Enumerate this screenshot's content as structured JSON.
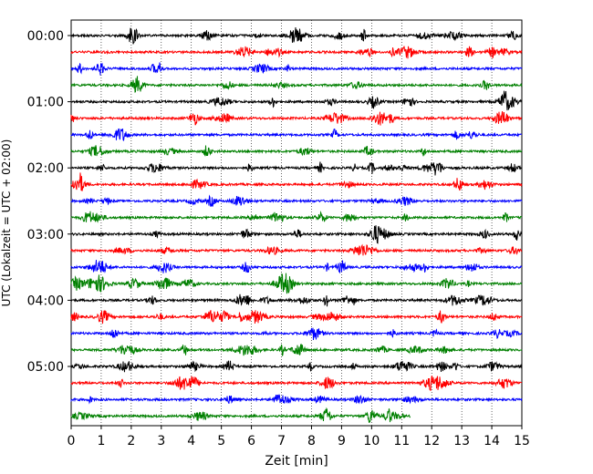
{
  "chart_data": {
    "type": "line",
    "title": "",
    "xlabel": "Zeit  [min]",
    "ylabel": "UTC (Lokalzeit = UTC + 02:00)",
    "xlim": [
      0,
      15
    ],
    "x_ticks": [
      0,
      1,
      2,
      3,
      4,
      5,
      6,
      7,
      8,
      9,
      10,
      11,
      12,
      13,
      14,
      15
    ],
    "x_grid": "dotted vertical lines at each minute",
    "y_tick_labels": [
      "00:00",
      "01:00",
      "02:00",
      "03:00",
      "04:00",
      "05:00"
    ],
    "row_interval_minutes": 15,
    "row_colors": [
      "#000000",
      "#ff0000",
      "#0000ff",
      "#008000"
    ],
    "traces": [
      {
        "start": "00:00",
        "end_min": 15,
        "color": "#000000"
      },
      {
        "start": "00:15",
        "end_min": 15,
        "color": "#ff0000"
      },
      {
        "start": "00:30",
        "end_min": 15,
        "color": "#0000ff"
      },
      {
        "start": "00:45",
        "end_min": 15,
        "color": "#008000"
      },
      {
        "start": "01:00",
        "end_min": 15,
        "color": "#000000"
      },
      {
        "start": "01:15",
        "end_min": 15,
        "color": "#ff0000"
      },
      {
        "start": "01:30",
        "end_min": 15,
        "color": "#0000ff"
      },
      {
        "start": "01:45",
        "end_min": 15,
        "color": "#008000"
      },
      {
        "start": "02:00",
        "end_min": 15,
        "color": "#000000"
      },
      {
        "start": "02:15",
        "end_min": 15,
        "color": "#ff0000"
      },
      {
        "start": "02:30",
        "end_min": 15,
        "color": "#0000ff"
      },
      {
        "start": "02:45",
        "end_min": 15,
        "color": "#008000"
      },
      {
        "start": "03:00",
        "end_min": 15,
        "color": "#000000"
      },
      {
        "start": "03:15",
        "end_min": 15,
        "color": "#ff0000"
      },
      {
        "start": "03:30",
        "end_min": 15,
        "color": "#0000ff"
      },
      {
        "start": "03:45",
        "end_min": 15,
        "color": "#008000"
      },
      {
        "start": "04:00",
        "end_min": 15,
        "color": "#000000"
      },
      {
        "start": "04:15",
        "end_min": 15,
        "color": "#ff0000"
      },
      {
        "start": "04:30",
        "end_min": 15,
        "color": "#0000ff"
      },
      {
        "start": "04:45",
        "end_min": 15,
        "color": "#008000"
      },
      {
        "start": "05:00",
        "end_min": 15,
        "color": "#000000"
      },
      {
        "start": "05:15",
        "end_min": 15,
        "color": "#ff0000"
      },
      {
        "start": "05:30",
        "end_min": 15,
        "color": "#0000ff"
      },
      {
        "start": "05:45",
        "end_min": 11.3,
        "color": "#008000"
      }
    ]
  }
}
